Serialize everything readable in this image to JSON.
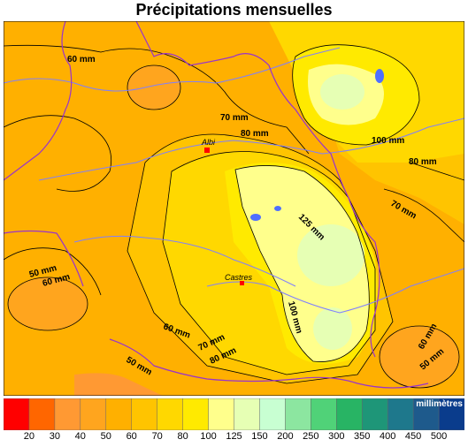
{
  "title": "Précipitations mensuelles",
  "cities": [
    {
      "name": "Albi"
    },
    {
      "name": "Castres"
    }
  ],
  "contour_labels": [
    "60 mm",
    "70 mm",
    "80 mm",
    "100 mm",
    "80 mm",
    "70 mm",
    "125 mm",
    "50 mm",
    "60 mm",
    "60 mm",
    "70 mm",
    "80 mm",
    "50 mm",
    "100 mm",
    "60 mm",
    "50 mm"
  ],
  "legend": {
    "unit": "millimètres",
    "classes": [
      {
        "value": "20",
        "color": "#ff0000"
      },
      {
        "value": "30",
        "color": "#ff6600"
      },
      {
        "value": "40",
        "color": "#ff9933"
      },
      {
        "value": "50",
        "color": "#ffa51e"
      },
      {
        "value": "60",
        "color": "#ffb000"
      },
      {
        "value": "70",
        "color": "#ffc400"
      },
      {
        "value": "80",
        "color": "#ffd800"
      },
      {
        "value": "100",
        "color": "#ffea00"
      },
      {
        "value": "125",
        "color": "#ffff8c"
      },
      {
        "value": "150",
        "color": "#e6ffb4"
      },
      {
        "value": "200",
        "color": "#c8ffd2"
      },
      {
        "value": "250",
        "color": "#8ce6a0"
      },
      {
        "value": "300",
        "color": "#50d278"
      },
      {
        "value": "350",
        "color": "#28b464"
      },
      {
        "value": "400",
        "color": "#1e9678"
      },
      {
        "value": "450",
        "color": "#1e788c"
      },
      {
        "value": "500",
        "color": "#1e5a8c"
      },
      {
        "value": "",
        "color": "#0a3c8c"
      }
    ]
  }
}
